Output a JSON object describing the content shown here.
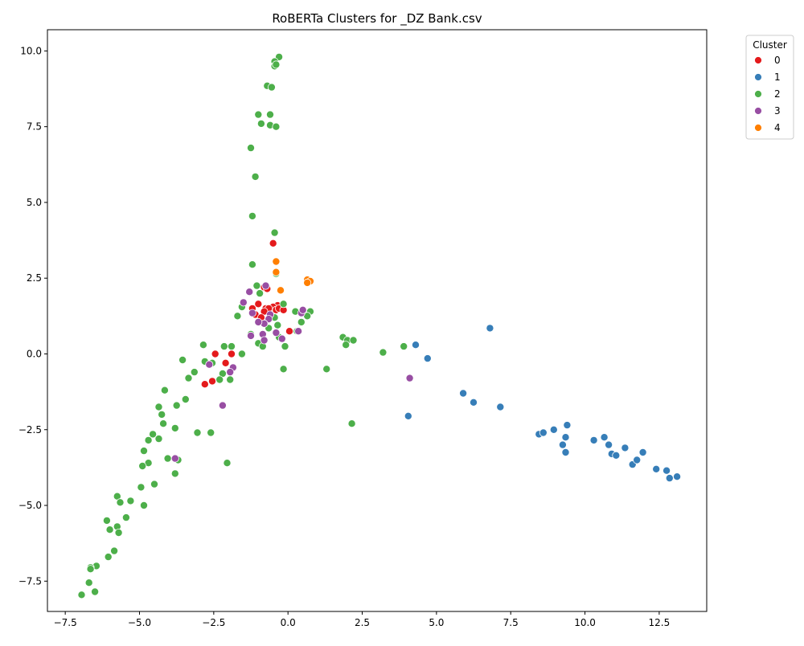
{
  "chart_data": {
    "type": "scatter",
    "title": "RoBERTa Clusters for _DZ Bank.csv",
    "xlabel": "",
    "ylabel": "",
    "xlim": [
      -8.1,
      14.1
    ],
    "ylim": [
      -8.5,
      10.7
    ],
    "xticks": [
      -7.5,
      -5.0,
      -2.5,
      0.0,
      2.5,
      5.0,
      7.5,
      10.0,
      12.5
    ],
    "xtick_labels": [
      "−7.5",
      "−5.0",
      "−2.5",
      "0.0",
      "2.5",
      "5.0",
      "7.5",
      "10.0",
      "12.5"
    ],
    "yticks": [
      -7.5,
      -5.0,
      -2.5,
      0.0,
      2.5,
      5.0,
      7.5,
      10.0
    ],
    "ytick_labels": [
      "−7.5",
      "−5.0",
      "−2.5",
      "0.0",
      "2.5",
      "5.0",
      "7.5",
      "10.0"
    ],
    "grid": false,
    "legend": {
      "title": "Cluster",
      "placement": "outside-top-right",
      "entries": [
        "0",
        "1",
        "2",
        "3",
        "4"
      ]
    },
    "series": [
      {
        "name": "0",
        "color": "#e41a1c",
        "points": [
          [
            -0.5,
            3.65
          ],
          [
            -0.8,
            2.2
          ],
          [
            -0.7,
            2.15
          ],
          [
            -1.0,
            1.65
          ],
          [
            -0.35,
            1.6
          ],
          [
            -0.5,
            1.55
          ],
          [
            -0.75,
            1.5
          ],
          [
            -0.65,
            1.5
          ],
          [
            -0.4,
            1.45
          ],
          [
            -0.3,
            1.5
          ],
          [
            -0.15,
            1.45
          ],
          [
            -0.8,
            1.4
          ],
          [
            -1.2,
            1.5
          ],
          [
            -1.1,
            1.3
          ],
          [
            -0.9,
            1.2
          ],
          [
            -0.6,
            1.25
          ],
          [
            0.05,
            0.75
          ],
          [
            -2.45,
            0.0
          ],
          [
            -1.9,
            0.0
          ],
          [
            -2.1,
            -0.3
          ],
          [
            -2.55,
            -0.9
          ],
          [
            -2.8,
            -1.0
          ]
        ]
      },
      {
        "name": "1",
        "color": "#377eb8",
        "points": [
          [
            6.8,
            0.85
          ],
          [
            4.3,
            0.3
          ],
          [
            4.7,
            -0.15
          ],
          [
            5.9,
            -1.3
          ],
          [
            6.25,
            -1.6
          ],
          [
            7.15,
            -1.75
          ],
          [
            4.05,
            -2.05
          ],
          [
            8.45,
            -2.65
          ],
          [
            8.6,
            -2.6
          ],
          [
            8.95,
            -2.5
          ],
          [
            9.4,
            -2.35
          ],
          [
            9.35,
            -2.75
          ],
          [
            9.25,
            -3.0
          ],
          [
            9.35,
            -3.25
          ],
          [
            10.3,
            -2.85
          ],
          [
            10.65,
            -2.75
          ],
          [
            10.8,
            -3.0
          ],
          [
            10.9,
            -3.3
          ],
          [
            11.05,
            -3.35
          ],
          [
            11.35,
            -3.1
          ],
          [
            11.6,
            -3.65
          ],
          [
            11.75,
            -3.5
          ],
          [
            11.95,
            -3.25
          ],
          [
            12.4,
            -3.8
          ],
          [
            12.75,
            -3.85
          ],
          [
            12.85,
            -4.1
          ],
          [
            13.1,
            -4.05
          ]
        ]
      },
      {
        "name": "2",
        "color": "#4daf4a",
        "points": [
          [
            -0.3,
            9.8
          ],
          [
            -0.45,
            9.65
          ],
          [
            -0.45,
            9.5
          ],
          [
            -0.4,
            9.55
          ],
          [
            -0.7,
            8.85
          ],
          [
            -0.55,
            8.8
          ],
          [
            -1.0,
            7.9
          ],
          [
            -0.6,
            7.9
          ],
          [
            -0.9,
            7.6
          ],
          [
            -0.6,
            7.55
          ],
          [
            -0.4,
            7.5
          ],
          [
            -1.25,
            6.8
          ],
          [
            -1.1,
            5.85
          ],
          [
            -1.2,
            4.55
          ],
          [
            -0.45,
            4.0
          ],
          [
            -1.2,
            2.95
          ],
          [
            -0.4,
            2.65
          ],
          [
            -1.05,
            2.25
          ],
          [
            -0.95,
            2.0
          ],
          [
            -1.55,
            1.55
          ],
          [
            -0.15,
            1.65
          ],
          [
            -1.7,
            1.25
          ],
          [
            0.25,
            1.4
          ],
          [
            0.75,
            1.4
          ],
          [
            0.65,
            1.25
          ],
          [
            -0.45,
            1.2
          ],
          [
            -0.65,
            0.85
          ],
          [
            -0.35,
            0.95
          ],
          [
            0.45,
            1.05
          ],
          [
            -1.25,
            0.65
          ],
          [
            -1.0,
            0.35
          ],
          [
            -0.85,
            0.25
          ],
          [
            -0.1,
            0.25
          ],
          [
            -0.3,
            0.55
          ],
          [
            0.3,
            0.75
          ],
          [
            1.85,
            0.55
          ],
          [
            2.0,
            0.45
          ],
          [
            2.2,
            0.45
          ],
          [
            1.95,
            0.3
          ],
          [
            3.2,
            0.05
          ],
          [
            3.9,
            0.25
          ],
          [
            -2.85,
            0.3
          ],
          [
            -2.15,
            0.25
          ],
          [
            -1.9,
            0.25
          ],
          [
            -1.55,
            0.0
          ],
          [
            -3.55,
            -0.2
          ],
          [
            -2.8,
            -0.25
          ],
          [
            -2.55,
            -0.3
          ],
          [
            -0.15,
            -0.5
          ],
          [
            1.3,
            -0.5
          ],
          [
            -3.15,
            -0.6
          ],
          [
            -2.2,
            -0.65
          ],
          [
            -1.95,
            -0.85
          ],
          [
            -2.3,
            -0.85
          ],
          [
            -3.35,
            -0.8
          ],
          [
            -4.15,
            -1.2
          ],
          [
            -3.45,
            -1.5
          ],
          [
            -3.75,
            -1.7
          ],
          [
            -4.35,
            -1.75
          ],
          [
            -4.25,
            -2.0
          ],
          [
            -4.2,
            -2.3
          ],
          [
            2.15,
            -2.3
          ],
          [
            -3.05,
            -2.6
          ],
          [
            -2.6,
            -2.6
          ],
          [
            -4.55,
            -2.65
          ],
          [
            -4.35,
            -2.8
          ],
          [
            -4.7,
            -2.85
          ],
          [
            -3.8,
            -2.45
          ],
          [
            -4.85,
            -3.2
          ],
          [
            -3.7,
            -3.5
          ],
          [
            -4.05,
            -3.45
          ],
          [
            -4.7,
            -3.6
          ],
          [
            -4.9,
            -3.7
          ],
          [
            -2.05,
            -3.6
          ],
          [
            -3.8,
            -3.95
          ],
          [
            -4.5,
            -4.3
          ],
          [
            -4.95,
            -4.4
          ],
          [
            -5.75,
            -4.7
          ],
          [
            -5.3,
            -4.85
          ],
          [
            -5.65,
            -4.9
          ],
          [
            -4.85,
            -5.0
          ],
          [
            -5.45,
            -5.4
          ],
          [
            -6.1,
            -5.5
          ],
          [
            -5.75,
            -5.7
          ],
          [
            -6.0,
            -5.8
          ],
          [
            -5.7,
            -5.9
          ],
          [
            -5.85,
            -6.5
          ],
          [
            -6.05,
            -6.7
          ],
          [
            -6.45,
            -7.0
          ],
          [
            -6.65,
            -7.05
          ],
          [
            -6.65,
            -7.1
          ],
          [
            -6.7,
            -7.55
          ],
          [
            -6.5,
            -7.85
          ],
          [
            -6.95,
            -7.95
          ]
        ]
      },
      {
        "name": "3",
        "color": "#984ea3",
        "points": [
          [
            -1.3,
            2.05
          ],
          [
            -0.75,
            2.25
          ],
          [
            -1.5,
            1.7
          ],
          [
            -1.2,
            1.35
          ],
          [
            -0.6,
            1.3
          ],
          [
            0.45,
            1.35
          ],
          [
            0.5,
            1.45
          ],
          [
            -0.65,
            1.15
          ],
          [
            -0.8,
            1.0
          ],
          [
            -1.0,
            1.05
          ],
          [
            0.35,
            0.75
          ],
          [
            -0.4,
            0.7
          ],
          [
            -0.85,
            0.65
          ],
          [
            -1.25,
            0.6
          ],
          [
            -0.2,
            0.5
          ],
          [
            -0.8,
            0.45
          ],
          [
            -2.65,
            -0.35
          ],
          [
            -1.85,
            -0.45
          ],
          [
            -1.95,
            -0.6
          ],
          [
            4.1,
            -0.8
          ],
          [
            -2.2,
            -1.7
          ],
          [
            -3.8,
            -3.45
          ]
        ]
      },
      {
        "name": "4",
        "color": "#ff7f00",
        "points": [
          [
            -0.4,
            3.05
          ],
          [
            -0.4,
            2.7
          ],
          [
            0.65,
            2.45
          ],
          [
            0.75,
            2.4
          ],
          [
            0.65,
            2.35
          ],
          [
            -0.25,
            2.1
          ]
        ]
      }
    ]
  }
}
